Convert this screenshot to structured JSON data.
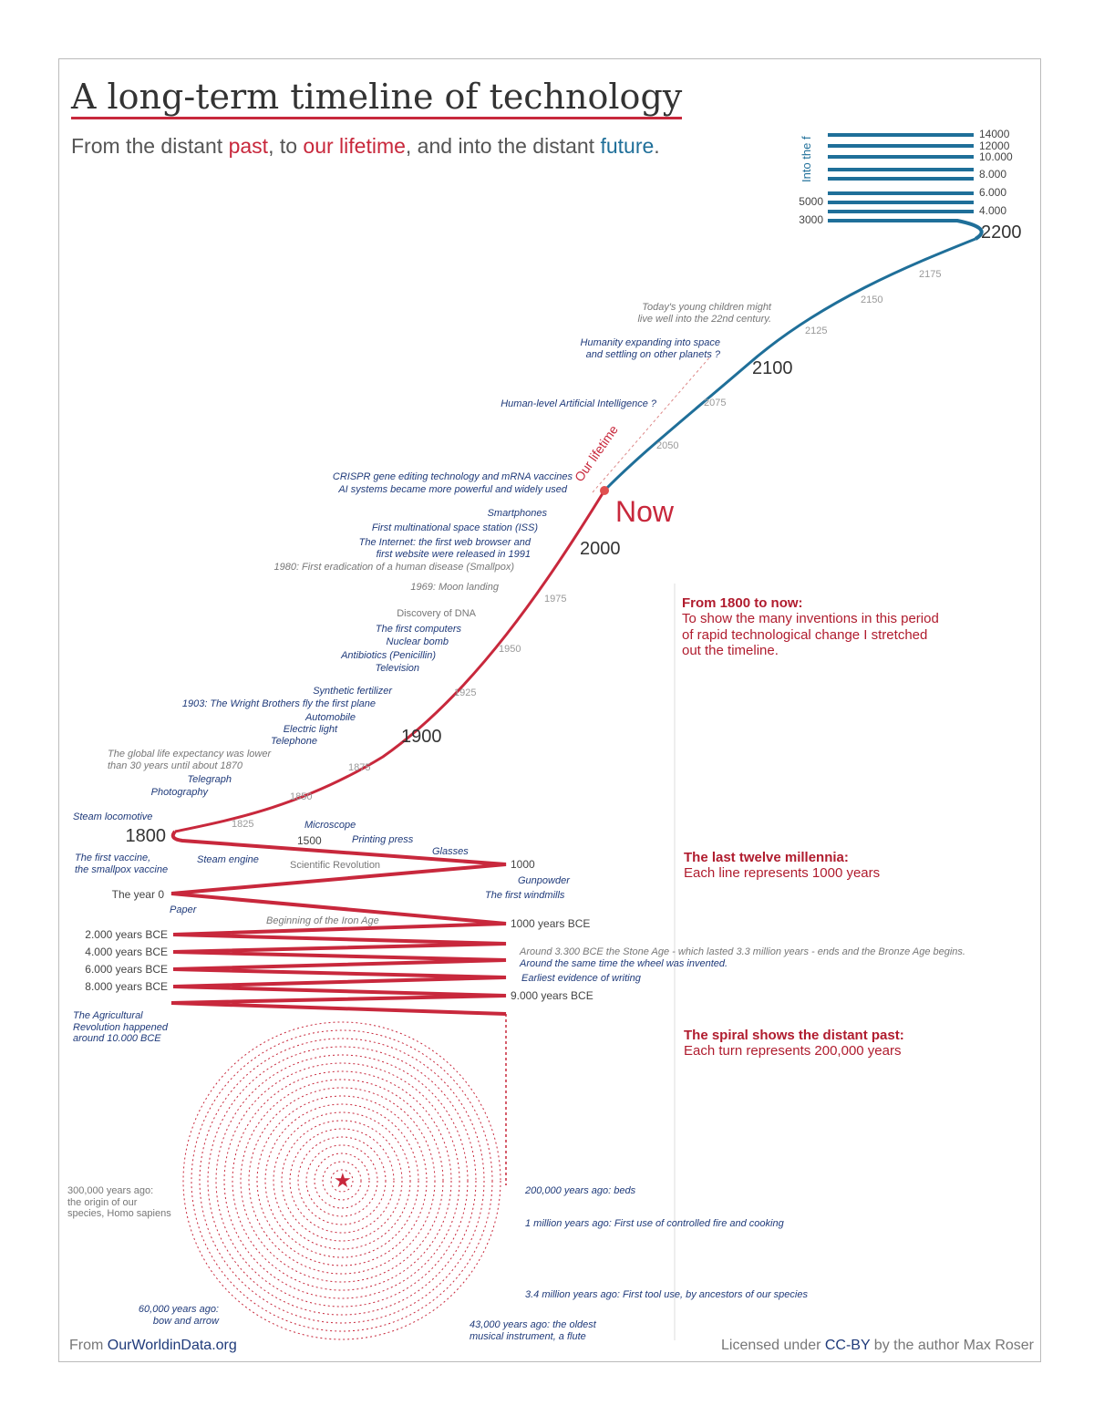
{
  "title": "A long-term timeline of technology",
  "subtitle": {
    "p1": "From the distant ",
    "past": "past",
    "p2": ", to ",
    "lifetime": "our lifetime",
    "p3": ", and into the distant ",
    "future": "future",
    "p4": "."
  },
  "colors": {
    "past": "#c8283c",
    "future": "#1f6f99",
    "events": "#1f3a7a",
    "title_underline": "#c8283c"
  },
  "future_section": {
    "label": "Into the f",
    "ticks_right": [
      "14000",
      "12000",
      "10.000",
      "8.000",
      "6.000",
      "4.000"
    ],
    "ticks_left": [
      "5000",
      "3000"
    ],
    "end": "2200"
  },
  "years": {
    "y2175": "2175",
    "y2150": "2150",
    "y2125": "2125",
    "y2100": "2100",
    "y2075": "2075",
    "y2050": "2050",
    "now": "Now",
    "y2000": "2000",
    "y1975": "1975",
    "y1950": "1950",
    "y1925": "1925",
    "y1900": "1900",
    "y1875": "1875",
    "y1850": "1850",
    "y1825": "1825",
    "y1800": "1800",
    "y1500": "1500",
    "y1000": "1000",
    "y0": "The year 0",
    "bce1000": "1000 years BCE",
    "bce2000": "2.000 years BCE",
    "bce4000": "4.000 years BCE",
    "bce6000": "6.000 years BCE",
    "bce8000": "8.000 years BCE",
    "bce9000": "9.000 years BCE"
  },
  "our_lifetime": "Our lifetime",
  "events": [
    "Today's young children might\nlive well into the 22nd century.",
    "Humanity expanding into space\nand settling on other planets ?",
    "Human-level Artificial Intelligence ?",
    "CRISPR gene editing technology and mRNA vaccines",
    "AI systems became more powerful and widely used",
    "Smartphones",
    "First multinational space station (ISS)",
    "The Internet: the first web browser and\nfirst website were released in 1991",
    "1980: First eradication of a human disease (Smallpox)",
    "1969: Moon landing",
    "Discovery of DNA",
    "The first computers",
    "Nuclear bomb",
    "Antibiotics (Penicillin)",
    "Television",
    "Synthetic fertilizer",
    "1903: The Wright Brothers fly the first plane",
    "Automobile",
    "Electric light",
    "Telephone",
    "The global life expectancy was lower\nthan 30 years until about 1870",
    "Telegraph",
    "Photography",
    "Steam locomotive",
    "The first vaccine,\nthe smallpox vaccine",
    "Steam engine",
    "Microscope",
    "Printing press",
    "Glasses",
    "Scientific Revolution",
    "Gunpowder",
    "The first windmills",
    "Paper",
    "Beginning of the Iron Age",
    "Around 3.300 BCE the Stone Age - which lasted 3.3 million years - ends and the Bronze Age begins.",
    "Around the same time the wheel was invented.",
    "Earliest evidence of writing",
    "The Agricultural\nRevolution happened\naround 10.000 BCE",
    "300,000 years ago:\nthe origin of our\nspecies, Homo sapiens",
    "200,000 years ago: beds",
    "1 million years ago: First use of controlled fire and cooking",
    "3.4 million years ago: First tool use, by ancestors of our species",
    "60,000 years ago:\nbow and arrow",
    "43,000 years ago: the oldest\nmusical instrument, a flute"
  ],
  "notes": [
    {
      "heading": "From 1800 to now:",
      "body": "To show the many inventions in this period\nof rapid technological change I stretched\nout the timeline."
    },
    {
      "heading": "The last twelve millennia:",
      "body": "Each line represents 1000 years"
    },
    {
      "heading": "The spiral shows the distant past:",
      "body": "Each turn represents 200,000 years"
    }
  ],
  "footer": {
    "from": "From ",
    "source": "OurWorldinData.org",
    "license_pre": "Licensed under ",
    "license": "CC-BY",
    "license_post": " by the author Max Roser"
  }
}
